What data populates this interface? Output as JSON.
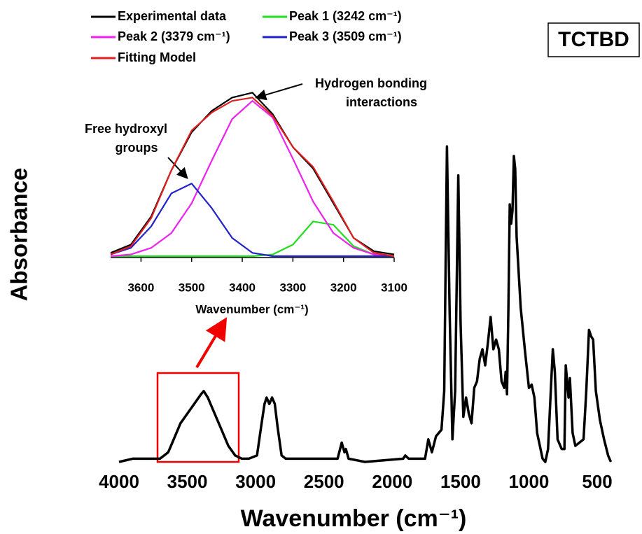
{
  "chart_data": [
    {
      "type": "line",
      "x_label": "Wavenumber (cm⁻¹)",
      "y_label": "Absorbance",
      "annotation": "TCTBD",
      "xlim": [
        4000,
        390
      ],
      "xticks": [
        4000,
        3500,
        3000,
        2500,
        2000,
        1500,
        1000,
        500
      ],
      "ylim": [
        0,
        1
      ],
      "grid": false,
      "color": "#000000",
      "x": [
        4000,
        3900,
        3800,
        3700,
        3640,
        3600,
        3550,
        3500,
        3450,
        3400,
        3380,
        3350,
        3300,
        3250,
        3200,
        3150,
        3100,
        3050,
        2990,
        2960,
        2935,
        2920,
        2900,
        2880,
        2860,
        2840,
        2810,
        2780,
        2400,
        2370,
        2350,
        2340,
        2320,
        2200,
        1920,
        1905,
        1880,
        1760,
        1736,
        1710,
        1680,
        1640,
        1620,
        1600,
        1580,
        1560,
        1540,
        1517,
        1500,
        1480,
        1460,
        1440,
        1420,
        1400,
        1380,
        1360,
        1340,
        1320,
        1300,
        1280,
        1260,
        1240,
        1220,
        1200,
        1180,
        1170,
        1160,
        1150,
        1140,
        1130,
        1120,
        1110,
        1100,
        1090,
        1060,
        1030,
        1000,
        980,
        960,
        940,
        900,
        880,
        860,
        840,
        825,
        810,
        790,
        760,
        740,
        730,
        710,
        700,
        680,
        660,
        600,
        580,
        560,
        545,
        530,
        510,
        480,
        450,
        420,
        400
      ],
      "values": [
        0.0,
        0.01,
        0.01,
        0.01,
        0.03,
        0.07,
        0.12,
        0.15,
        0.18,
        0.21,
        0.22,
        0.2,
        0.15,
        0.1,
        0.05,
        0.02,
        0.01,
        0.01,
        0.02,
        0.11,
        0.18,
        0.2,
        0.18,
        0.2,
        0.18,
        0.11,
        0.02,
        0.01,
        0.01,
        0.06,
        0.03,
        0.04,
        0.01,
        0.0,
        0.01,
        0.02,
        0.01,
        0.01,
        0.07,
        0.03,
        0.08,
        0.1,
        0.22,
        0.98,
        0.46,
        0.07,
        0.22,
        0.89,
        0.43,
        0.14,
        0.2,
        0.15,
        0.12,
        0.23,
        0.25,
        0.32,
        0.35,
        0.3,
        0.37,
        0.45,
        0.35,
        0.38,
        0.35,
        0.25,
        0.23,
        0.28,
        0.21,
        0.48,
        0.8,
        0.74,
        0.78,
        0.95,
        0.91,
        0.7,
        0.48,
        0.35,
        0.23,
        0.24,
        0.2,
        0.09,
        0.01,
        0.0,
        0.04,
        0.22,
        0.35,
        0.28,
        0.07,
        0.04,
        0.04,
        0.3,
        0.2,
        0.26,
        0.09,
        0.05,
        0.07,
        0.22,
        0.41,
        0.39,
        0.38,
        0.22,
        0.13,
        0.07,
        0.02,
        0.0
      ]
    },
    {
      "type": "line",
      "x_label": "Wavenumber (cm⁻¹)",
      "annotations": [
        [
          "Hydrogen bonding",
          "interactions"
        ],
        [
          "Free hydroxyl",
          "groups"
        ]
      ],
      "xlim": [
        3660,
        3100
      ],
      "xticks": [
        3600,
        3500,
        3400,
        3300,
        3200,
        3100
      ],
      "ylim": [
        0,
        1
      ],
      "grid": false,
      "x": [
        3660,
        3620,
        3580,
        3540,
        3500,
        3460,
        3420,
        3380,
        3340,
        3300,
        3260,
        3220,
        3180,
        3140,
        3100
      ],
      "series": [
        {
          "name": "Experimental data",
          "color": "#000000",
          "values": [
            0.02,
            0.07,
            0.24,
            0.52,
            0.75,
            0.88,
            0.96,
            0.99,
            0.86,
            0.66,
            0.53,
            0.32,
            0.11,
            0.03,
            0.01
          ]
        },
        {
          "name": "Peak 1 (3242 cm⁻¹)",
          "color": "#22dd22",
          "values": [
            0,
            0,
            0,
            0,
            0,
            0,
            0,
            0,
            0.01,
            0.07,
            0.21,
            0.19,
            0.06,
            0.01,
            0
          ]
        },
        {
          "name": "Peak 2 (3379 cm⁻¹)",
          "color": "#ee22ee",
          "values": [
            0,
            0.01,
            0.05,
            0.14,
            0.32,
            0.58,
            0.83,
            0.94,
            0.84,
            0.59,
            0.33,
            0.14,
            0.05,
            0.01,
            0
          ]
        },
        {
          "name": "Peak 3 (3509 cm⁻¹)",
          "color": "#2222cc",
          "values": [
            0.01,
            0.05,
            0.18,
            0.38,
            0.44,
            0.29,
            0.11,
            0.02,
            0,
            0,
            0,
            0,
            0,
            0,
            0
          ]
        },
        {
          "name": "Fitting Model",
          "color": "#e02020",
          "values": [
            0.01,
            0.06,
            0.23,
            0.52,
            0.76,
            0.87,
            0.94,
            0.96,
            0.85,
            0.66,
            0.54,
            0.33,
            0.11,
            0.02,
            0
          ]
        }
      ]
    }
  ]
}
